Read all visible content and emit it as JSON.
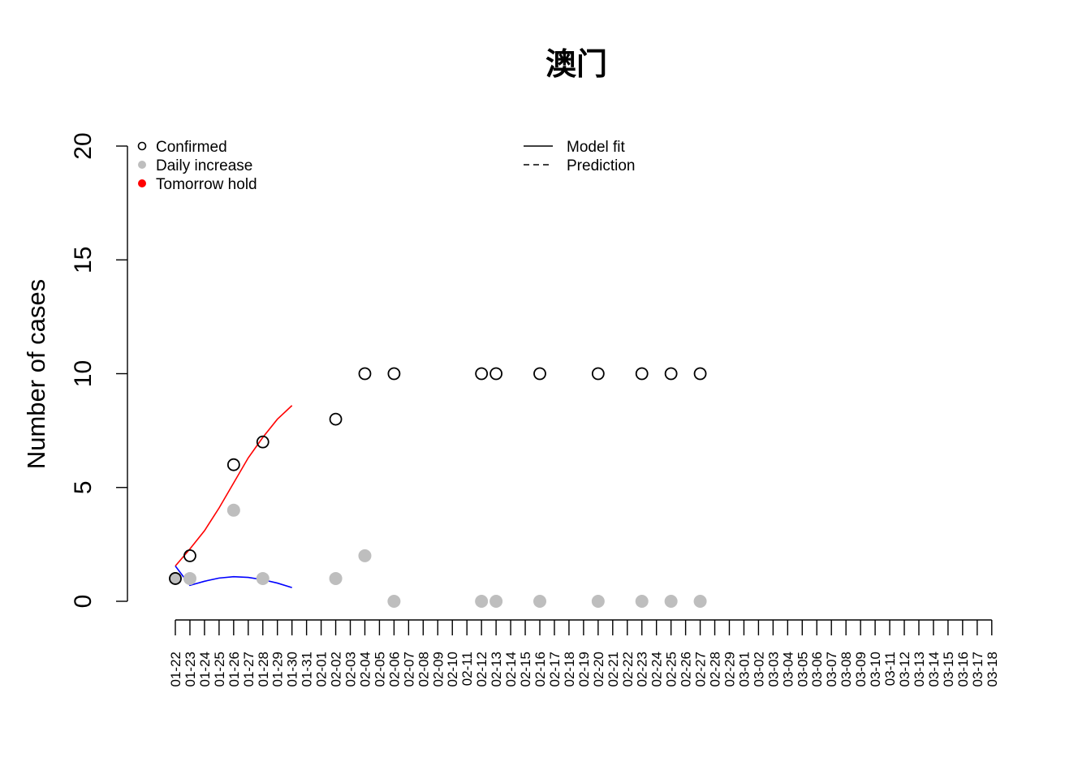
{
  "chart_data": {
    "type": "scatter",
    "title": "澳门",
    "xlabel": "",
    "ylabel": "Number of cases",
    "ylim": [
      0,
      20
    ],
    "yticks": [
      "0",
      "5",
      "10",
      "15",
      "20"
    ],
    "grid": false,
    "categories": [
      "01-22",
      "01-23",
      "01-24",
      "01-25",
      "01-26",
      "01-27",
      "01-28",
      "01-29",
      "01-30",
      "01-31",
      "02-01",
      "02-02",
      "02-03",
      "02-04",
      "02-05",
      "02-06",
      "02-07",
      "02-08",
      "02-09",
      "02-10",
      "02-11",
      "02-12",
      "02-13",
      "02-14",
      "02-15",
      "02-16",
      "02-17",
      "02-18",
      "02-19",
      "02-20",
      "02-21",
      "02-22",
      "02-23",
      "02-24",
      "02-25",
      "02-26",
      "02-27",
      "02-28",
      "02-29",
      "03-01",
      "03-02",
      "03-03",
      "03-04",
      "03-05",
      "03-06",
      "03-07",
      "03-08",
      "03-09",
      "03-10",
      "03-11",
      "03-12",
      "03-13",
      "03-14",
      "03-15",
      "03-16",
      "03-17",
      "03-18"
    ],
    "series": [
      {
        "name": "Confirmed",
        "marker": "open-circle",
        "color": "#000000",
        "points": [
          [
            "01-22",
            1
          ],
          [
            "01-23",
            2
          ],
          [
            "01-26",
            6
          ],
          [
            "01-28",
            7
          ],
          [
            "02-02",
            8
          ],
          [
            "02-04",
            10
          ],
          [
            "02-06",
            10
          ],
          [
            "02-12",
            10
          ],
          [
            "02-13",
            10
          ],
          [
            "02-16",
            10
          ],
          [
            "02-20",
            10
          ],
          [
            "02-23",
            10
          ],
          [
            "02-25",
            10
          ],
          [
            "02-27",
            10
          ]
        ]
      },
      {
        "name": "Daily increase",
        "marker": "filled-circle",
        "color": "#bebebe",
        "points": [
          [
            "01-22",
            1
          ],
          [
            "01-23",
            1
          ],
          [
            "01-26",
            4
          ],
          [
            "01-28",
            1
          ],
          [
            "02-02",
            1
          ],
          [
            "02-04",
            2
          ],
          [
            "02-06",
            0
          ],
          [
            "02-12",
            0
          ],
          [
            "02-13",
            0
          ],
          [
            "02-16",
            0
          ],
          [
            "02-20",
            0
          ],
          [
            "02-23",
            0
          ],
          [
            "02-25",
            0
          ],
          [
            "02-27",
            0
          ]
        ]
      },
      {
        "name": "Model fit (cumulative)",
        "line": "solid",
        "color": "#ff0000",
        "points": [
          [
            "01-22",
            1.55
          ],
          [
            "01-23",
            2.3
          ],
          [
            "01-24",
            3.1
          ],
          [
            "01-25",
            4.1
          ],
          [
            "01-26",
            5.2
          ],
          [
            "01-27",
            6.3
          ],
          [
            "01-28",
            7.2
          ],
          [
            "01-29",
            8.0
          ],
          [
            "01-30",
            8.6
          ]
        ]
      },
      {
        "name": "Model fit (daily)",
        "line": "solid",
        "color": "#0000ff",
        "points": [
          [
            "01-22",
            1.55
          ],
          [
            "01-23",
            0.7
          ],
          [
            "01-24",
            0.88
          ],
          [
            "01-25",
            1.02
          ],
          [
            "01-26",
            1.08
          ],
          [
            "01-27",
            1.05
          ],
          [
            "01-28",
            0.95
          ],
          [
            "01-29",
            0.8
          ],
          [
            "01-30",
            0.6
          ]
        ]
      }
    ],
    "legend_left": {
      "placement": "top-left",
      "items": [
        {
          "label": "Confirmed",
          "symbol": "open-circle",
          "color": "#000000"
        },
        {
          "label": "Daily increase",
          "symbol": "filled-circle",
          "color": "#bebebe"
        },
        {
          "label": "Tomorrow hold",
          "symbol": "filled-circle",
          "color": "#ff0000"
        }
      ]
    },
    "legend_right": {
      "placement": "top-center",
      "items": [
        {
          "label": "Model fit",
          "symbol": "solid-line",
          "color": "#000000"
        },
        {
          "label": "Prediction",
          "symbol": "dashed-line",
          "color": "#000000"
        }
      ]
    }
  }
}
